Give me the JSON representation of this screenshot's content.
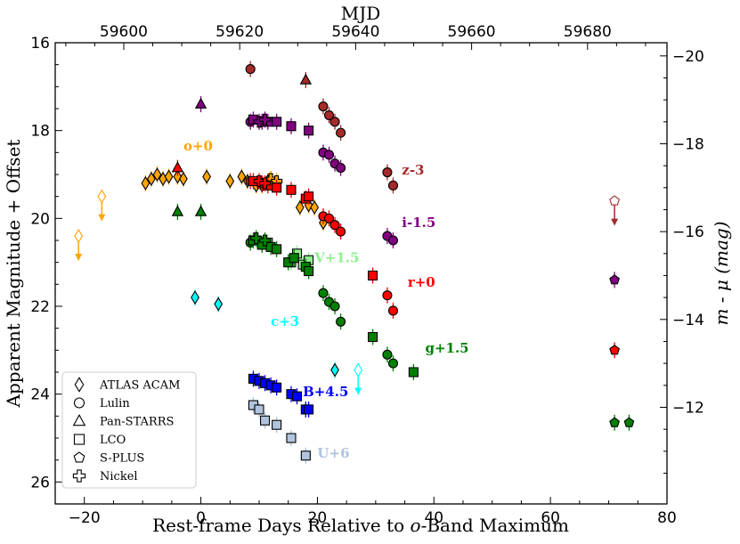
{
  "chart_data": {
    "type": "scatter",
    "xlabel_prefix": "Rest-frame Days Relative to ",
    "xlabel_italic": "o",
    "xlabel_suffix": "-Band Maximum",
    "ylabel": "Apparent Magnitude + Offset",
    "y2label": "m - μ (mag)",
    "top_xlabel": "MJD",
    "xlim": [
      -25,
      80
    ],
    "ylim": [
      26.5,
      16
    ],
    "x_ticks": [
      -20,
      0,
      20,
      40,
      60,
      80
    ],
    "y_ticks": [
      16,
      18,
      20,
      22,
      24,
      26
    ],
    "mjd_ticks": [
      59600,
      59620,
      59640,
      59660,
      59680
    ],
    "mjd_at_zero": 59613.3,
    "mjd_per_day": 1.005,
    "y2_ticks": [
      -20,
      -18,
      -16,
      -14,
      -12
    ],
    "distance_modulus": 36.3,
    "band_colors": {
      "o": "#ffa500",
      "z": "#a52a2a",
      "i": "#800080",
      "r": "#ff0000",
      "V": "#90ee90",
      "g": "#008000",
      "c": "#00ffff",
      "B": "#0000ff",
      "U": "#b0c4de"
    },
    "band_labels": [
      {
        "text": "o+0",
        "band": "o",
        "x": -3,
        "y": 18.45
      },
      {
        "text": "z-3",
        "band": "z",
        "x": 34.5,
        "y": 19.0
      },
      {
        "text": "i-1.5",
        "band": "i",
        "x": 34.5,
        "y": 20.2
      },
      {
        "text": "V+1.5",
        "band": "V",
        "x": 19.5,
        "y": 21.0
      },
      {
        "text": "r+0",
        "band": "r",
        "x": 35.5,
        "y": 21.55
      },
      {
        "text": "c+3",
        "band": "c",
        "x": 12,
        "y": 22.45
      },
      {
        "text": "g+1.5",
        "band": "g",
        "x": 38.5,
        "y": 23.05
      },
      {
        "text": "B+4.5",
        "band": "B",
        "x": 17.5,
        "y": 24.05
      },
      {
        "text": "U+6",
        "band": "U",
        "x": 20,
        "y": 25.45
      }
    ],
    "series": [
      {
        "band": "o",
        "marker": "diamond",
        "points": [
          [
            -9.5,
            19.2
          ],
          [
            -8.5,
            19.1
          ],
          [
            -7.5,
            19.0
          ],
          [
            -6.5,
            19.1
          ],
          [
            -5.5,
            19.05
          ],
          [
            -4,
            19.05
          ],
          [
            -3,
            19.1
          ],
          [
            1,
            19.05
          ],
          [
            5,
            19.15
          ],
          [
            7,
            19.05
          ],
          [
            8,
            19.15
          ],
          [
            9.5,
            19.25
          ],
          [
            10.5,
            19.25
          ],
          [
            11.5,
            19.15
          ],
          [
            17,
            19.75
          ],
          [
            18.5,
            19.7
          ],
          [
            19.5,
            19.75
          ],
          [
            21,
            20.1
          ]
        ]
      },
      {
        "band": "o",
        "marker": "diamond",
        "upper_limit": true,
        "points": [
          [
            -21,
            20.4
          ],
          [
            -17,
            19.5
          ]
        ]
      },
      {
        "band": "o",
        "marker": "cross",
        "points": [
          [
            12,
            19.1
          ],
          [
            13,
            19.15
          ]
        ]
      },
      {
        "band": "z",
        "marker": "circle",
        "points": [
          [
            8.5,
            16.6
          ],
          [
            21,
            17.45
          ],
          [
            22,
            17.65
          ],
          [
            23,
            17.8
          ],
          [
            24,
            18.05
          ],
          [
            32,
            18.95
          ],
          [
            33,
            19.25
          ]
        ]
      },
      {
        "band": "z",
        "marker": "triangle",
        "points": [
          [
            18,
            16.85
          ]
        ]
      },
      {
        "band": "z",
        "marker": "pentagon",
        "upper_limit": true,
        "points": [
          [
            71,
            19.6
          ]
        ]
      },
      {
        "band": "i",
        "marker": "circle",
        "points": [
          [
            8.5,
            17.8
          ],
          [
            21,
            18.5
          ],
          [
            22,
            18.55
          ],
          [
            23,
            18.75
          ],
          [
            24,
            18.85
          ],
          [
            32,
            20.4
          ],
          [
            33,
            20.5
          ]
        ]
      },
      {
        "band": "i",
        "marker": "triangle",
        "points": [
          [
            0,
            17.4
          ]
        ]
      },
      {
        "band": "i",
        "marker": "square",
        "points": [
          [
            9,
            17.75
          ],
          [
            10.5,
            17.8
          ],
          [
            11.5,
            17.8
          ],
          [
            13,
            17.8
          ],
          [
            15.5,
            17.9
          ],
          [
            18.5,
            18.0
          ]
        ]
      },
      {
        "band": "i",
        "marker": "cross",
        "points": [
          [
            10,
            17.8
          ],
          [
            11,
            17.75
          ]
        ]
      },
      {
        "band": "i",
        "marker": "pentagon",
        "points": [
          [
            71,
            21.4
          ]
        ]
      },
      {
        "band": "r",
        "marker": "circle",
        "points": [
          [
            8.5,
            19.15
          ],
          [
            21,
            19.95
          ],
          [
            22,
            20.0
          ],
          [
            23,
            20.15
          ],
          [
            24,
            20.3
          ],
          [
            32,
            21.75
          ],
          [
            33,
            22.1
          ]
        ]
      },
      {
        "band": "r",
        "marker": "triangle",
        "points": [
          [
            -4,
            18.85
          ]
        ]
      },
      {
        "band": "r",
        "marker": "square",
        "points": [
          [
            9,
            19.15
          ],
          [
            10.5,
            19.2
          ],
          [
            11.5,
            19.25
          ],
          [
            13,
            19.3
          ],
          [
            15.5,
            19.35
          ],
          [
            18,
            19.55
          ],
          [
            18.5,
            19.5
          ],
          [
            29.5,
            21.3
          ]
        ]
      },
      {
        "band": "r",
        "marker": "cross",
        "points": [
          [
            10,
            19.15
          ],
          [
            11,
            19.2
          ]
        ]
      },
      {
        "band": "r",
        "marker": "pentagon",
        "points": [
          [
            71,
            23.0
          ]
        ]
      },
      {
        "band": "V",
        "marker": "square",
        "points": [
          [
            9.5,
            20.5
          ],
          [
            11.5,
            20.55
          ],
          [
            15.5,
            21.0
          ],
          [
            16.5,
            20.8
          ],
          [
            17.5,
            21.05
          ],
          [
            18.5,
            20.95
          ]
        ]
      },
      {
        "band": "g",
        "marker": "circle",
        "points": [
          [
            8.5,
            20.55
          ],
          [
            21,
            21.7
          ],
          [
            22,
            21.9
          ],
          [
            23,
            22.0
          ],
          [
            24,
            22.35
          ],
          [
            32,
            23.1
          ],
          [
            33,
            23.3
          ]
        ]
      },
      {
        "band": "g",
        "marker": "triangle",
        "points": [
          [
            -4,
            19.85
          ],
          [
            0,
            19.85
          ]
        ]
      },
      {
        "band": "g",
        "marker": "square",
        "points": [
          [
            9,
            20.5
          ],
          [
            10.5,
            20.6
          ],
          [
            12,
            20.65
          ],
          [
            13,
            20.7
          ],
          [
            15,
            21.0
          ],
          [
            16,
            20.9
          ],
          [
            18,
            21.1
          ],
          [
            18.5,
            21.2
          ],
          [
            29.5,
            22.7
          ],
          [
            36.5,
            23.5
          ]
        ]
      },
      {
        "band": "g",
        "marker": "cross",
        "points": [
          [
            9.5,
            20.45
          ],
          [
            11,
            20.5
          ]
        ]
      },
      {
        "band": "g",
        "marker": "pentagon",
        "points": [
          [
            71,
            24.65
          ],
          [
            73.5,
            24.65
          ]
        ]
      },
      {
        "band": "c",
        "marker": "diamond",
        "points": [
          [
            -1,
            21.8
          ],
          [
            3,
            21.95
          ],
          [
            23,
            23.45
          ]
        ]
      },
      {
        "band": "c",
        "marker": "diamond",
        "upper_limit": true,
        "points": [
          [
            27,
            23.45
          ]
        ]
      },
      {
        "band": "B",
        "marker": "square",
        "points": [
          [
            9,
            23.65
          ],
          [
            10,
            23.7
          ],
          [
            11,
            23.75
          ],
          [
            12,
            23.8
          ],
          [
            13,
            23.85
          ],
          [
            15.5,
            24.0
          ],
          [
            16.5,
            24.05
          ],
          [
            18,
            24.35
          ],
          [
            18.5,
            24.35
          ]
        ]
      },
      {
        "band": "U",
        "marker": "square",
        "points": [
          [
            9,
            24.25
          ],
          [
            10,
            24.35
          ],
          [
            11,
            24.6
          ],
          [
            13,
            24.7
          ],
          [
            15.5,
            25.0
          ],
          [
            18,
            25.4
          ]
        ]
      }
    ],
    "legend": [
      {
        "label": "ATLAS ACAM",
        "marker": "diamond"
      },
      {
        "label": "Lulin",
        "marker": "circle"
      },
      {
        "label": "Pan-STARRS",
        "marker": "triangle"
      },
      {
        "label": "LCO",
        "marker": "square"
      },
      {
        "label": "S-PLUS",
        "marker": "pentagon"
      },
      {
        "label": "Nickel",
        "marker": "cross"
      }
    ],
    "legend_position": "bottom-left"
  }
}
